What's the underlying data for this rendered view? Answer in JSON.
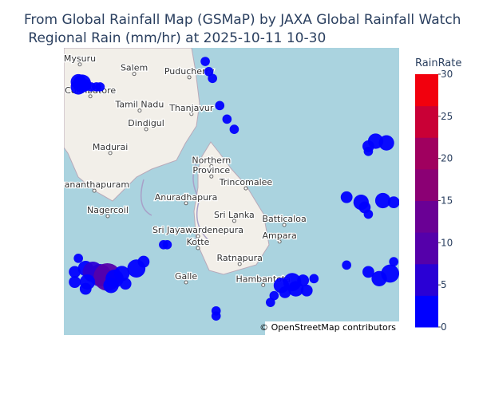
{
  "chart_data": {
    "type": "scattermap",
    "title": [
      "From Global Rainfall Map (GSMaP) by JAXA Global Rainfall Watch",
      " Regional Rain (mm/hr) at 2025-10-11 10-30"
    ],
    "lonlim": [
      76.2,
      85.45
    ],
    "latlim": [
      4.14,
      12.6
    ],
    "lat": [
      11.6,
      11.55,
      11.5,
      11.45,
      11.45,
      11.45,
      11.45,
      6.1,
      6.0,
      5.9,
      5.85,
      5.8,
      5.95,
      6.1,
      6.3,
      5.7,
      5.5,
      5.6,
      5.65,
      6.0,
      5.7,
      6.4,
      6.8,
      6.8,
      5.6,
      5.7,
      5.5,
      5.75,
      5.4,
      5.3,
      5.1,
      5.8,
      5.45,
      4.7,
      4.85,
      12.2,
      11.9,
      11.7,
      10.9,
      10.5,
      10.2,
      9.85,
      9.8,
      9.7,
      9.55,
      8.2,
      8.05,
      8.1,
      7.9,
      7.7,
      8.05,
      6.2,
      6.0,
      5.95,
      5.8,
      6.3
    ],
    "lon": [
      76.6,
      76.7,
      76.8,
      76.6,
      76.95,
      77.1,
      77.2,
      76.8,
      77.0,
      77.2,
      77.4,
      77.6,
      77.8,
      78.2,
      78.4,
      76.85,
      76.8,
      77.5,
      77.9,
      76.5,
      76.5,
      76.6,
      78.95,
      79.05,
      82.2,
      82.5,
      82.6,
      82.8,
      82.3,
      82.0,
      81.9,
      83.1,
      82.9,
      80.4,
      80.4,
      80.1,
      80.2,
      80.3,
      80.5,
      80.7,
      80.9,
      84.8,
      85.1,
      84.6,
      84.6,
      84.0,
      84.4,
      85.0,
      84.5,
      84.6,
      85.3,
      84.0,
      84.6,
      85.2,
      84.9,
      85.3
    ],
    "values": [
      2,
      3,
      1,
      2,
      0.5,
      0.5,
      0.5,
      2,
      4,
      5,
      8,
      3,
      2,
      3,
      1,
      2,
      1,
      2,
      1,
      1,
      1,
      0.5,
      0.5,
      0.5,
      2,
      3,
      2,
      1,
      1,
      0.5,
      0.5,
      0.5,
      1,
      0.5,
      0.5,
      0.5,
      0.5,
      0.5,
      0.5,
      0.5,
      0.5,
      2,
      2,
      1,
      0.5,
      1,
      2,
      2,
      1,
      0.5,
      1,
      0.5,
      1,
      3,
      2,
      0.5
    ],
    "colorbar": {
      "title": "RainRate",
      "ylim": [
        0,
        30
      ],
      "yticks": [
        0,
        5,
        10,
        15,
        20,
        25,
        30
      ],
      "colorscale": [
        "#0000ff",
        "#2a00d5",
        "#5500aa",
        "#6a0095",
        "#8b0074",
        "#a0005f",
        "#c90036",
        "#f2000d"
      ]
    },
    "places": [
      {
        "name": "Mysuru",
        "lat": 12.3,
        "lon": 76.64
      },
      {
        "name": "Salem",
        "lat": 12.02,
        "lon": 78.14
      },
      {
        "name": "Puducherry",
        "lat": 11.92,
        "lon": 79.66
      },
      {
        "name": "Coimbatore",
        "lat": 11.36,
        "lon": 76.93
      },
      {
        "name": "Tamil Nadu",
        "lat": 10.94,
        "lon": 78.29
      },
      {
        "name": "Thanjavur",
        "lat": 10.84,
        "lon": 79.72
      },
      {
        "name": "Dindigul",
        "lat": 10.39,
        "lon": 78.47
      },
      {
        "name": "Madurai",
        "lat": 9.69,
        "lon": 77.48
      },
      {
        "name": "Northern",
        "lat": 9.3,
        "lon": 80.27
      },
      {
        "name": "Province",
        "lat": 9.0,
        "lon": 80.27
      },
      {
        "name": "Trincomalee",
        "lat": 8.65,
        "lon": 81.22
      },
      {
        "name": "Anuradhapura",
        "lat": 8.21,
        "lon": 79.57
      },
      {
        "name": "vananthapuram",
        "lat": 8.58,
        "lon": 77.04
      },
      {
        "name": "Nagercoil",
        "lat": 7.83,
        "lon": 77.41
      },
      {
        "name": "Sri Lanka",
        "lat": 7.69,
        "lon": 80.9
      },
      {
        "name": "Batticaloa",
        "lat": 7.57,
        "lon": 82.28
      },
      {
        "name": "Sri Jayawardenepura",
        "lat": 7.24,
        "lon": 79.9
      },
      {
        "name": "Ampara",
        "lat": 7.08,
        "lon": 82.15
      },
      {
        "name": "Kotte",
        "lat": 6.89,
        "lon": 79.9
      },
      {
        "name": "Ratnapura",
        "lat": 6.42,
        "lon": 81.05
      },
      {
        "name": "Galle",
        "lat": 5.88,
        "lon": 79.57
      },
      {
        "name": "Hambantota",
        "lat": 5.8,
        "lon": 81.7
      }
    ],
    "attribution": "© OpenStreetMap contributors"
  }
}
